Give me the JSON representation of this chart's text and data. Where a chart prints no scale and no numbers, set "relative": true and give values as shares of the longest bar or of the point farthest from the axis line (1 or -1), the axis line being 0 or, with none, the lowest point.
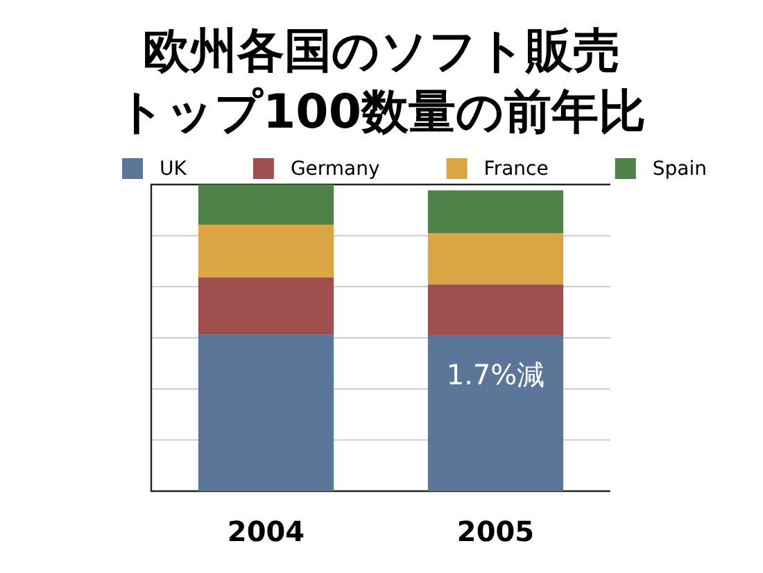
{
  "chart_data": {
    "type": "bar",
    "title": "欧州各国のソフト販売トップ100数量の前年比",
    "categories": [
      "2004",
      "2005"
    ],
    "stacked": true,
    "relative": true,
    "grid": "y",
    "legend": "top",
    "series": [
      {
        "name": "UK",
        "color": "#5b7699",
        "values": [
          0.511,
          0.507
        ]
      },
      {
        "name": "Germany",
        "color": "#a04f4f",
        "values": [
          0.186,
          0.167
        ]
      },
      {
        "name": "France",
        "color": "#d9a545",
        "values": [
          0.172,
          0.167
        ]
      },
      {
        "name": "Spain",
        "color": "#4f8248",
        "values": [
          0.131,
          0.14
        ]
      }
    ],
    "annotations": [
      "1.7%減"
    ]
  }
}
